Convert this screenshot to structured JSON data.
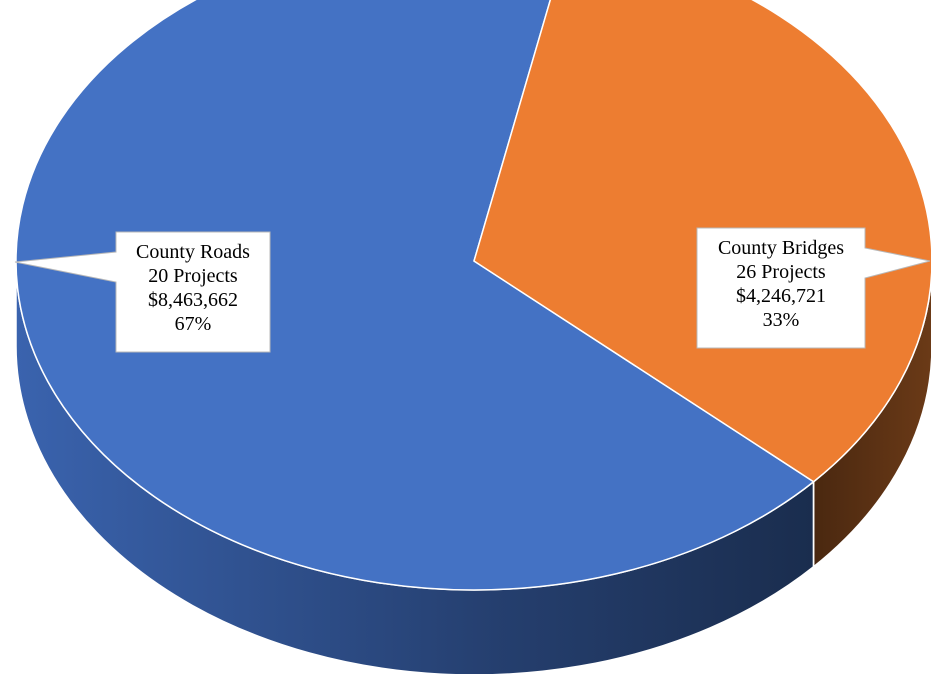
{
  "chart_data": {
    "type": "pie",
    "style": "3d",
    "title": "",
    "slices": [
      {
        "name": "County Roads",
        "projects_label": "20 Projects",
        "amount_label": "$8,463,662",
        "percent_label": "67%",
        "value": 8463662,
        "percent": 67,
        "color": "#4472C4",
        "side_color": "#2E4E8C",
        "side_color_dark": "#1B2B4A"
      },
      {
        "name": "County Bridges",
        "projects_label": "26 Projects",
        "amount_label": "$4,246,721",
        "percent_label": "33%",
        "value": 4246721,
        "percent": 33,
        "color": "#ED7D31",
        "side_color": "#6B3A17",
        "side_color_dark": "#4A2810"
      }
    ],
    "legend": "none",
    "labels": "callouts"
  }
}
